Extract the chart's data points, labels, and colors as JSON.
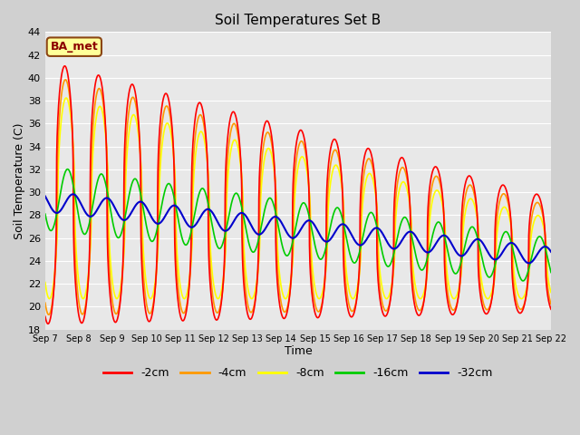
{
  "title": "Soil Temperatures Set B",
  "xlabel": "Time",
  "ylabel": "Soil Temperature (C)",
  "ylim": [
    18,
    44
  ],
  "xlim": [
    0,
    360
  ],
  "annotation": "BA_met",
  "series": {
    "-2cm": {
      "color": "#ff0000",
      "linewidth": 1.2
    },
    "-4cm": {
      "color": "#ff9900",
      "linewidth": 1.2
    },
    "-8cm": {
      "color": "#ffff00",
      "linewidth": 1.2
    },
    "-16cm": {
      "color": "#00cc00",
      "linewidth": 1.2
    },
    "-32cm": {
      "color": "#0000cc",
      "linewidth": 1.5
    }
  },
  "xtick_labels": [
    "Sep 7",
    "Sep 8",
    "Sep 9",
    "Sep 10",
    "Sep 11",
    "Sep 12",
    "Sep 13",
    "Sep 14",
    "Sep 15",
    "Sep 16",
    "Sep 17",
    "Sep 18",
    "Sep 19",
    "Sep 20",
    "Sep 21",
    "Sep 22"
  ],
  "xtick_positions": [
    0,
    24,
    48,
    72,
    96,
    120,
    144,
    168,
    192,
    216,
    240,
    264,
    288,
    312,
    336,
    360
  ],
  "ytick_vals": [
    18,
    20,
    22,
    24,
    26,
    28,
    30,
    32,
    34,
    36,
    38,
    40,
    42,
    44
  ],
  "fig_bg": "#d0d0d0",
  "ax_bg": "#e8e8e8",
  "grid_color": "#ffffff",
  "title_fontsize": 11,
  "axis_fontsize": 9,
  "tick_fontsize": 8
}
